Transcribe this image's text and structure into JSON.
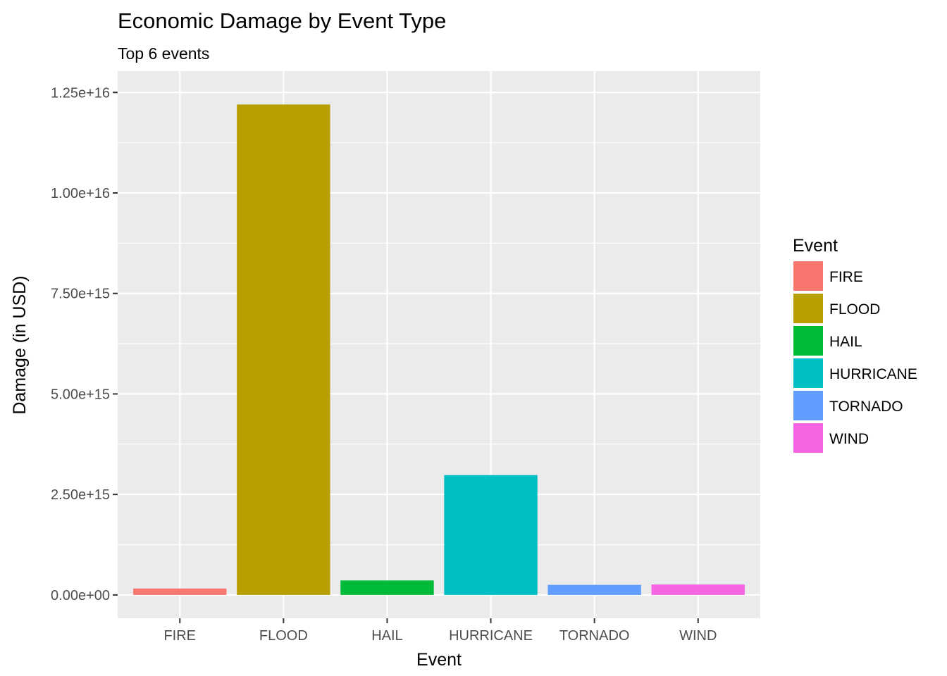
{
  "chart_data": {
    "type": "bar",
    "title": "Economic Damage by Event Type",
    "subtitle": "Top 6 events",
    "xlabel": "Event",
    "ylabel": "Damage (in USD)",
    "categories": [
      "FIRE",
      "FLOOD",
      "HAIL",
      "HURRICANE",
      "TORNADO",
      "WIND"
    ],
    "values": [
      160000000000000.0,
      1.22e+16,
      360000000000000.0,
      2980000000000000.0,
      250000000000000.0,
      260000000000000.0
    ],
    "colors": [
      "#F8766D",
      "#B79F00",
      "#00BA38",
      "#00BFC4",
      "#619CFF",
      "#F564E3"
    ],
    "ylim": [
      -580000000000000.0,
      1.303e+16
    ],
    "yticks": [
      0,
      2500000000000000.0,
      5000000000000000.0,
      7500000000000000.0,
      1e+16,
      1.25e+16
    ],
    "ytick_labels": [
      "0.00e+00",
      "2.50e+15",
      "5.00e+15",
      "7.50e+15",
      "1.00e+16",
      "1.25e+16"
    ],
    "grid": true,
    "panel_background": "#EBEBEB",
    "grid_color": "#FFFFFF",
    "legend": {
      "title": "Event",
      "position": "right",
      "entries": [
        "FIRE",
        "FLOOD",
        "HAIL",
        "HURRICANE",
        "TORNADO",
        "WIND"
      ]
    }
  }
}
